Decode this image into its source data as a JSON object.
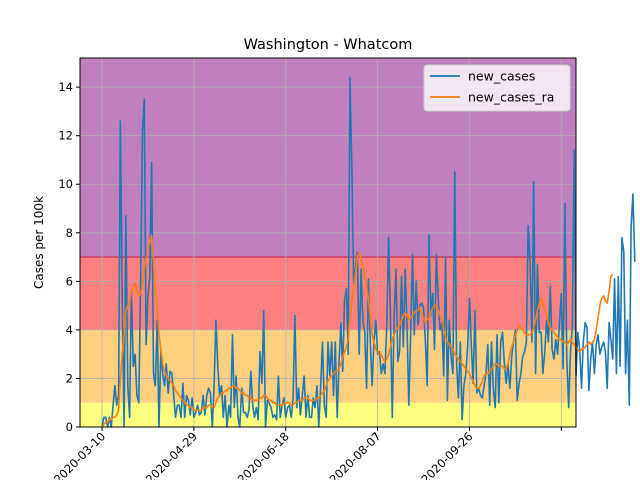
{
  "chart_data": {
    "type": "line",
    "title": "Washington - Whatcom",
    "xlabel": "",
    "ylabel": "Cases per 100k",
    "ylim": [
      0,
      15.2
    ],
    "xlim": [
      "2020-02-27",
      "2020-11-23"
    ],
    "yticks": [
      0,
      2,
      4,
      6,
      8,
      10,
      12,
      14
    ],
    "xticks": [
      "2020-03-10",
      "2020-04-29",
      "2020-06-18",
      "2020-08-07",
      "2020-09-26",
      ""
    ],
    "x_start": "2020-03-10",
    "grid": true,
    "legend_position": "top-right",
    "bands": [
      {
        "from": 0,
        "to": 1,
        "color": "#ffff80"
      },
      {
        "from": 1,
        "to": 4,
        "color": "#ffd080"
      },
      {
        "from": 4,
        "to": 7,
        "color": "#ff8080"
      },
      {
        "from": 7,
        "to": 15.2,
        "color": "#c080c0"
      }
    ],
    "band_line": {
      "value": 7,
      "color": "#d02040"
    },
    "series": [
      {
        "name": "new_cases",
        "color": "#1f77b4",
        "values": [
          0,
          0.4,
          0.4,
          0,
          0.4,
          0,
          0.9,
          1.7,
          0.9,
          1.3,
          12.6,
          5,
          0,
          8.7,
          1.7,
          0.4,
          5.6,
          2.5,
          3,
          1.3,
          1,
          6,
          12.2,
          13.5,
          3.4,
          5.4,
          6.2,
          10.9,
          2.2,
          1.7,
          4.4,
          0,
          3.1,
          2.2,
          1.7,
          2.6,
          1.4,
          2.3,
          2.2,
          1.3,
          0.4,
          0.9,
          0.9,
          0.4,
          1.8,
          0.4,
          1.3,
          1.1,
          0.5,
          1.2,
          0.4,
          0.6,
          0.9,
          0.5,
          0.6,
          1.3,
          0.5,
          1.3,
          1.6,
          1.4,
          0,
          1.7,
          4.4,
          2.5,
          1.3,
          1.7,
          0.4,
          1.3,
          0,
          0.9,
          0.4,
          3.8,
          0.8,
          2.1,
          0.4,
          0,
          1.6,
          0.6,
          0.6,
          0.4,
          0.7,
          2.3,
          0.9,
          0.4,
          0.8,
          0.3,
          3.1,
          1.8,
          4.8,
          0,
          1.1,
          1,
          0.8,
          0.4,
          0.5,
          0.3,
          2.1,
          0.4,
          0.9,
          1.2,
          0.4,
          0.8,
          0.9,
          0.4,
          1.2,
          4.6,
          0.8,
          1.6,
          0.5,
          1.3,
          2.1,
          0.4,
          1.3,
          0.4,
          0.4,
          1.2,
          0.8,
          1.7,
          0,
          1.7,
          3.5,
          0.9,
          0.4,
          3.5,
          2.1,
          3.5,
          1.3,
          3.5,
          0.4,
          2.6,
          4.3,
          2.3,
          5.2,
          5.7,
          3,
          14.4,
          10.5,
          5.8,
          6.6,
          7.2,
          3,
          6.5,
          4.4,
          3.9,
          1.6,
          6.1,
          3.5,
          1.7,
          3.5,
          4.4,
          3,
          3.1,
          2.2,
          2.6,
          2.2,
          4.2,
          7.8,
          4.5,
          0.4,
          4.5,
          6.5,
          2.7,
          3.1,
          6.2,
          3.3,
          6.5,
          4.2,
          0.9,
          3.9,
          7.1,
          3.8,
          6,
          4.2,
          5,
          5.1,
          4.9,
          3.5,
          1.7,
          7.9,
          4.6,
          5.5,
          3.2,
          7.1,
          5.3,
          4,
          4.3,
          2.1,
          7,
          1.1,
          4.4,
          2.9,
          2.2,
          10.5,
          2.6,
          1.2,
          3.5,
          0.3,
          1.7,
          2.2,
          3.3,
          5.3,
          3.4,
          1.8,
          4.8,
          1.4,
          1.6,
          1.3,
          1.2,
          1.7,
          2.2,
          3.4,
          0.9,
          3.5,
          1.6,
          0.8,
          3.8,
          1,
          3.5,
          3.9,
          2.6,
          1.8,
          2.6,
          1.6,
          2.9,
          3.5,
          4,
          1.1,
          1.8,
          2.2,
          2.9,
          3.1,
          3.5,
          8.3,
          6.7,
          3.5,
          10.1,
          2.2,
          6.7,
          3.9,
          3.9,
          2.2,
          3.1,
          4.4,
          3.5,
          5.8,
          3.2,
          2.8,
          3.6,
          3,
          4.3,
          5.5,
          2.4,
          9.2,
          2.8,
          0.8,
          3.1,
          4.1,
          11.4,
          2.1,
          3.9,
          3.2,
          1.6,
          3.5,
          4.3,
          4.1,
          1.5,
          2.8,
          3.5,
          2.2,
          3.4,
          3.8,
          3,
          3.3,
          3.5,
          3.1,
          1.6,
          4.3,
          3.6,
          2.8,
          6.1,
          2.2,
          6.2,
          2.5,
          7.8,
          7.2,
          2.2,
          4.4,
          0.9,
          8.2,
          9.6,
          6.8
        ]
      },
      {
        "name": "new_cases_ra",
        "color": "#ff7f0e",
        "values": [
          0,
          0.1,
          0.2,
          0.2,
          0.3,
          0.3,
          0.4,
          0.4,
          0.5,
          0.7,
          2,
          3,
          3.8,
          4.8,
          5,
          5.1,
          5.6,
          5.8,
          5.9,
          5.6,
          5.4,
          5.5,
          5.9,
          6.5,
          6.9,
          7.3,
          7.6,
          7.9,
          6.8,
          5.6,
          5,
          3.8,
          3.2,
          2.6,
          2.3,
          2.1,
          2,
          1.9,
          1.8,
          1.7,
          1.5,
          1.4,
          1.3,
          1.2,
          1.1,
          1,
          0.9,
          0.9,
          0.8,
          0.8,
          0.7,
          0.7,
          0.7,
          0.7,
          0.7,
          0.8,
          0.8,
          0.8,
          0.9,
          0.9,
          0.8,
          0.8,
          1,
          1.2,
          1.3,
          1.4,
          1.4,
          1.5,
          1.5,
          1.6,
          1.6,
          1.7,
          1.7,
          1.6,
          1.6,
          1.5,
          1.4,
          1.4,
          1.3,
          1.3,
          1.2,
          1.2,
          1.1,
          1.1,
          1.1,
          1.1,
          1.2,
          1.2,
          1.3,
          1.3,
          1.2,
          1.1,
          1.1,
          1,
          1,
          0.9,
          0.9,
          0.9,
          0.9,
          1,
          1,
          1,
          1,
          0.9,
          0.9,
          1,
          1,
          1.1,
          1.1,
          1.1,
          1.2,
          1.2,
          1.2,
          1.1,
          1.1,
          1.1,
          1.1,
          1.2,
          1.2,
          1.3,
          1.4,
          1.5,
          1.7,
          1.9,
          2,
          2.1,
          2.2,
          2.3,
          2.3,
          2.4,
          2.6,
          2.9,
          3.1,
          3.3,
          3.6,
          4.5,
          5.2,
          5.8,
          6.3,
          7,
          7.2,
          6.9,
          6.7,
          6.2,
          5.8,
          5.3,
          4.5,
          3.8,
          3.5,
          3.2,
          3.1,
          3,
          3,
          2.8,
          2.7,
          2.8,
          3,
          3.3,
          3.6,
          3.8,
          4,
          4.1,
          4.2,
          4.4,
          4.6,
          4.7,
          4.6,
          4.4,
          4.5,
          4.6,
          4.7,
          4.8,
          4.8,
          4.9,
          4.7,
          4.5,
          4.3,
          4.4,
          4.5,
          4.7,
          4.9,
          5,
          5,
          4.8,
          4.6,
          4.4,
          4,
          3.7,
          3.5,
          3.4,
          3.3,
          3.2,
          3,
          2.9,
          2.8,
          2.7,
          2.6,
          2.5,
          2.4,
          2.3,
          2.2,
          2,
          1.9,
          1.7,
          1.6,
          1.6,
          1.7,
          1.9,
          2.1,
          2.2,
          2.2,
          2.3,
          2.4,
          2.5,
          2.6,
          2.6,
          2.5,
          2.5,
          2.5,
          2.4,
          2.4,
          2.6,
          3,
          3.3,
          3.5,
          3.8,
          4,
          4.2,
          4.1,
          4,
          3.9,
          3.8,
          3.8,
          3.8,
          3.9,
          4.1,
          4.4,
          4.8,
          5.1,
          5.3,
          5.1,
          4.8,
          4.6,
          4.3,
          4.1,
          4,
          3.9,
          3.8,
          3.7,
          3.6,
          3.6,
          3.5,
          3.5,
          3.4,
          3.5,
          3.6,
          3.5,
          3.4,
          3.3,
          3.2,
          3.1,
          3.2,
          3.2,
          3.3,
          3.4,
          3.5,
          3.4,
          3.5,
          3.6,
          4,
          4.5,
          5,
          5.3,
          5.4,
          5.2,
          5.1,
          5.6,
          6.2,
          6.3
        ]
      }
    ]
  }
}
